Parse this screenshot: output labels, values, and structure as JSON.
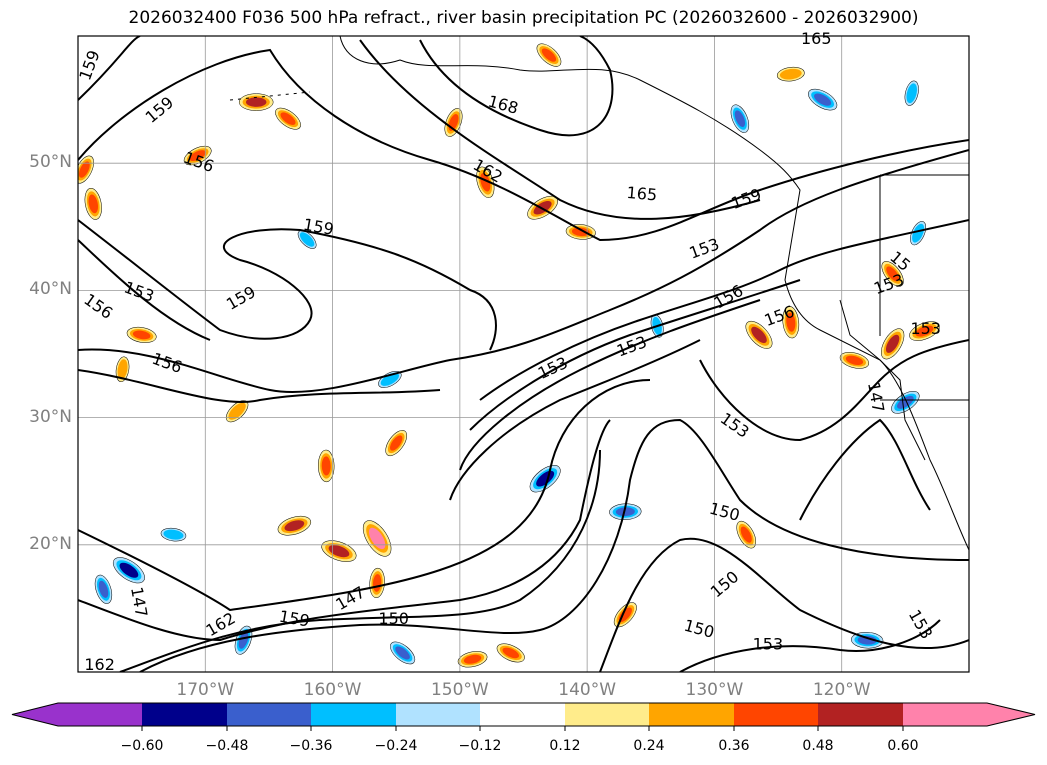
{
  "title": "2026032400 F036 500 hPa refract., river basin precipitation PC (2026032600 - 2026032900)",
  "map": {
    "lon_range": [
      -180,
      -110
    ],
    "lat_range": [
      10,
      60
    ],
    "lat_labels": [
      {
        "lat": 50,
        "text": "50°N"
      },
      {
        "lat": 40,
        "text": "40°N"
      },
      {
        "lat": 30,
        "text": "30°N"
      },
      {
        "lat": 20,
        "text": "20°N"
      }
    ],
    "lon_labels": [
      {
        "lon": -170,
        "text": "170°W"
      },
      {
        "lon": -160,
        "text": "160°W"
      },
      {
        "lon": -150,
        "text": "150°W"
      },
      {
        "lon": -140,
        "text": "140°W"
      },
      {
        "lon": -130,
        "text": "130°W"
      },
      {
        "lon": -120,
        "text": "120°W"
      }
    ],
    "contour_labels": [
      {
        "text": "159",
        "lon": -179.1,
        "lat": 57.7,
        "rot": -70
      },
      {
        "text": "159",
        "lon": -173.6,
        "lat": 54.2,
        "rot": -40
      },
      {
        "text": "156",
        "lon": -170.5,
        "lat": 50.1,
        "rot": 20
      },
      {
        "text": "168",
        "lon": -146.6,
        "lat": 54.6,
        "rot": 15
      },
      {
        "text": "165",
        "lon": -122.0,
        "lat": 59.8,
        "rot": 0
      },
      {
        "text": "162",
        "lon": -147.8,
        "lat": 49.4,
        "rot": 30
      },
      {
        "text": "165",
        "lon": -135.7,
        "lat": 47.6,
        "rot": 5
      },
      {
        "text": "159",
        "lon": -127.5,
        "lat": 47.2,
        "rot": -20
      },
      {
        "text": "159",
        "lon": -161.1,
        "lat": 45.0,
        "rot": 10
      },
      {
        "text": "153",
        "lon": -130.8,
        "lat": 43.3,
        "rot": -20
      },
      {
        "text": "153",
        "lon": -175.2,
        "lat": 39.9,
        "rot": 20
      },
      {
        "text": "159",
        "lon": -167.2,
        "lat": 39.4,
        "rot": -30
      },
      {
        "text": "156",
        "lon": -178.4,
        "lat": 38.75,
        "rot": 35
      },
      {
        "text": "156",
        "lon": -128.9,
        "lat": 39.5,
        "rot": -30
      },
      {
        "text": "15",
        "lon": -115.4,
        "lat": 42.3,
        "rot": 40
      },
      {
        "text": "153",
        "lon": -116.3,
        "lat": 40.5,
        "rot": -20
      },
      {
        "text": "156",
        "lon": -124.9,
        "lat": 38.0,
        "rot": -20
      },
      {
        "text": "153",
        "lon": -113.4,
        "lat": 37.0,
        "rot": 0
      },
      {
        "text": "153",
        "lon": -136.5,
        "lat": 35.6,
        "rot": -20
      },
      {
        "text": "156",
        "lon": -173.0,
        "lat": 34.3,
        "rot": 20
      },
      {
        "text": "153",
        "lon": -142.7,
        "lat": 33.9,
        "rot": -25
      },
      {
        "text": "147",
        "lon": -117.3,
        "lat": 31.6,
        "rot": 80
      },
      {
        "text": "153",
        "lon": -128.4,
        "lat": 29.4,
        "rot": 35
      },
      {
        "text": "150",
        "lon": -129.2,
        "lat": 22.6,
        "rot": 15
      },
      {
        "text": "147",
        "lon": -175.2,
        "lat": 15.5,
        "rot": 80
      },
      {
        "text": "147",
        "lon": -158.6,
        "lat": 15.8,
        "rot": -30
      },
      {
        "text": "162",
        "lon": -168.8,
        "lat": 13.75,
        "rot": -30
      },
      {
        "text": "159",
        "lon": -163.0,
        "lat": 14.2,
        "rot": 10
      },
      {
        "text": "150",
        "lon": -155.2,
        "lat": 14.2,
        "rot": 0
      },
      {
        "text": "150",
        "lon": -129.2,
        "lat": 16.9,
        "rot": -40
      },
      {
        "text": "150",
        "lon": -131.2,
        "lat": 13.4,
        "rot": 15
      },
      {
        "text": "153",
        "lon": -125.8,
        "lat": 12.2,
        "rot": 0
      },
      {
        "text": "153",
        "lon": -113.8,
        "lat": 13.75,
        "rot": 60
      },
      {
        "text": "162",
        "lon": -178.3,
        "lat": 10.6,
        "rot": 0
      }
    ],
    "precip_areas": [
      {
        "lon": -166.0,
        "lat": 54.8,
        "value": 0.5
      },
      {
        "lon": -163.5,
        "lat": 53.5,
        "value": 0.4
      },
      {
        "lon": -148.0,
        "lat": 48.5,
        "value": 0.45
      },
      {
        "lon": -150.5,
        "lat": 53.2,
        "value": 0.4
      },
      {
        "lon": -143.5,
        "lat": 46.5,
        "value": 0.5
      },
      {
        "lon": -140.5,
        "lat": 44.6,
        "value": 0.4
      },
      {
        "lon": -143.0,
        "lat": 58.5,
        "value": 0.4
      },
      {
        "lon": -178.8,
        "lat": 46.8,
        "value": 0.45
      },
      {
        "lon": -179.5,
        "lat": 49.5,
        "value": 0.4
      },
      {
        "lon": -170.6,
        "lat": 50.6,
        "value": 0.4
      },
      {
        "lon": -175.0,
        "lat": 36.5,
        "value": 0.4
      },
      {
        "lon": -126.5,
        "lat": 36.5,
        "value": 0.5
      },
      {
        "lon": -124.0,
        "lat": 37.5,
        "value": 0.45
      },
      {
        "lon": -116.0,
        "lat": 35.8,
        "value": 0.5
      },
      {
        "lon": -113.5,
        "lat": 36.8,
        "value": 0.45
      },
      {
        "lon": -119.0,
        "lat": 34.5,
        "value": 0.4
      },
      {
        "lon": -116.0,
        "lat": 41.3,
        "value": 0.4
      },
      {
        "lon": -160.5,
        "lat": 26.2,
        "value": 0.45
      },
      {
        "lon": -155.0,
        "lat": 28.0,
        "value": 0.4
      },
      {
        "lon": -163.0,
        "lat": 21.5,
        "value": 0.5
      },
      {
        "lon": -159.5,
        "lat": 19.5,
        "value": 0.55
      },
      {
        "lon": -156.5,
        "lat": 20.5,
        "value": 0.65
      },
      {
        "lon": -156.5,
        "lat": 17.0,
        "value": 0.4
      },
      {
        "lon": -137.0,
        "lat": 14.5,
        "value": 0.4
      },
      {
        "lon": -149.0,
        "lat": 11.0,
        "value": 0.4
      },
      {
        "lon": -146.0,
        "lat": 11.5,
        "value": 0.4
      },
      {
        "lon": -127.5,
        "lat": 20.8,
        "value": 0.4
      },
      {
        "lon": -176.5,
        "lat": 33.8,
        "value": 0.3
      },
      {
        "lon": -167.5,
        "lat": 30.5,
        "value": 0.35
      },
      {
        "lon": -124.0,
        "lat": 57.0,
        "value": 0.35
      },
      {
        "lon": -121.5,
        "lat": 55.0,
        "value": -0.45
      },
      {
        "lon": -128.0,
        "lat": 53.5,
        "value": -0.4
      },
      {
        "lon": -114.5,
        "lat": 55.5,
        "value": -0.3
      },
      {
        "lon": -143.3,
        "lat": 25.2,
        "value": -0.55
      },
      {
        "lon": -137.0,
        "lat": 22.6,
        "value": -0.45
      },
      {
        "lon": -176.0,
        "lat": 18.0,
        "value": -0.55
      },
      {
        "lon": -178.0,
        "lat": 16.5,
        "value": -0.4
      },
      {
        "lon": -167.0,
        "lat": 12.5,
        "value": -0.4
      },
      {
        "lon": -115.0,
        "lat": 31.2,
        "value": -0.45
      },
      {
        "lon": -118.0,
        "lat": 12.5,
        "value": -0.45
      },
      {
        "lon": -154.5,
        "lat": 11.5,
        "value": -0.4
      },
      {
        "lon": -134.5,
        "lat": 37.2,
        "value": -0.25
      },
      {
        "lon": -114.0,
        "lat": 44.5,
        "value": -0.3
      },
      {
        "lon": -155.5,
        "lat": 33.0,
        "value": -0.3
      },
      {
        "lon": -172.5,
        "lat": 20.8,
        "value": -0.3
      },
      {
        "lon": -162.0,
        "lat": 44.0,
        "value": -0.25
      }
    ]
  },
  "colorbar": {
    "ticks": [
      "−0.60",
      "−0.48",
      "−0.36",
      "−0.24",
      "−0.12",
      "0.12",
      "0.24",
      "0.36",
      "0.48",
      "0.60"
    ],
    "colors": [
      "#9932cc",
      "#00008b",
      "#3a5fcd",
      "#00bfff",
      "#b0e2ff",
      "#ffffff",
      "#ffec8b",
      "#ffa500",
      "#ff4500",
      "#b22222",
      "#ff82ab"
    ],
    "bounds": [
      -0.6,
      -0.48,
      -0.36,
      -0.24,
      -0.12,
      0.12,
      0.24,
      0.36,
      0.48,
      0.6
    ]
  }
}
